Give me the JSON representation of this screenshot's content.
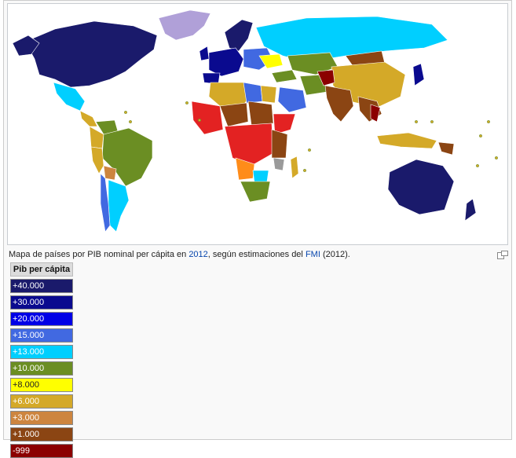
{
  "caption": {
    "prefix": "Mapa de países por PIB nominal per cápita en ",
    "year_link": "2012",
    "middle": ", según estimaciones del ",
    "source_link": "FMI",
    "suffix": " (2012)."
  },
  "legend": {
    "header": "Pib per cápita",
    "items": [
      {
        "label": "+40.000",
        "color": "#1a1a6b",
        "text_color": "#ffffff"
      },
      {
        "label": "+30.000",
        "color": "#0a0a8f",
        "text_color": "#ffffff"
      },
      {
        "label": "+20.000",
        "color": "#0000e6",
        "text_color": "#ffffff"
      },
      {
        "label": "+15.000",
        "color": "#4169e1",
        "text_color": "#ffffff"
      },
      {
        "label": "+13.000",
        "color": "#00cfff",
        "text_color": "#ffffff"
      },
      {
        "label": "+10.000",
        "color": "#6b8e23",
        "text_color": "#ffffff"
      },
      {
        "label": "+8.000",
        "color": "#ffff00",
        "text_color": "#222222"
      },
      {
        "label": "+6.000",
        "color": "#d4a928",
        "text_color": "#ffffff"
      },
      {
        "label": "+3.000",
        "color": "#cd853f",
        "text_color": "#ffffff"
      },
      {
        "label": "+1.000",
        "color": "#8b4513",
        "text_color": "#ffffff"
      },
      {
        "label": "-999",
        "color": "#8b0000",
        "text_color": "#ffffff"
      }
    ]
  },
  "map_colors": {
    "ocean": "#ffffff",
    "greenland": "#b0a0d8",
    "no_data": "#9a9a9a",
    "border": "#ffffff"
  },
  "icons": [
    "magnify-icon"
  ]
}
